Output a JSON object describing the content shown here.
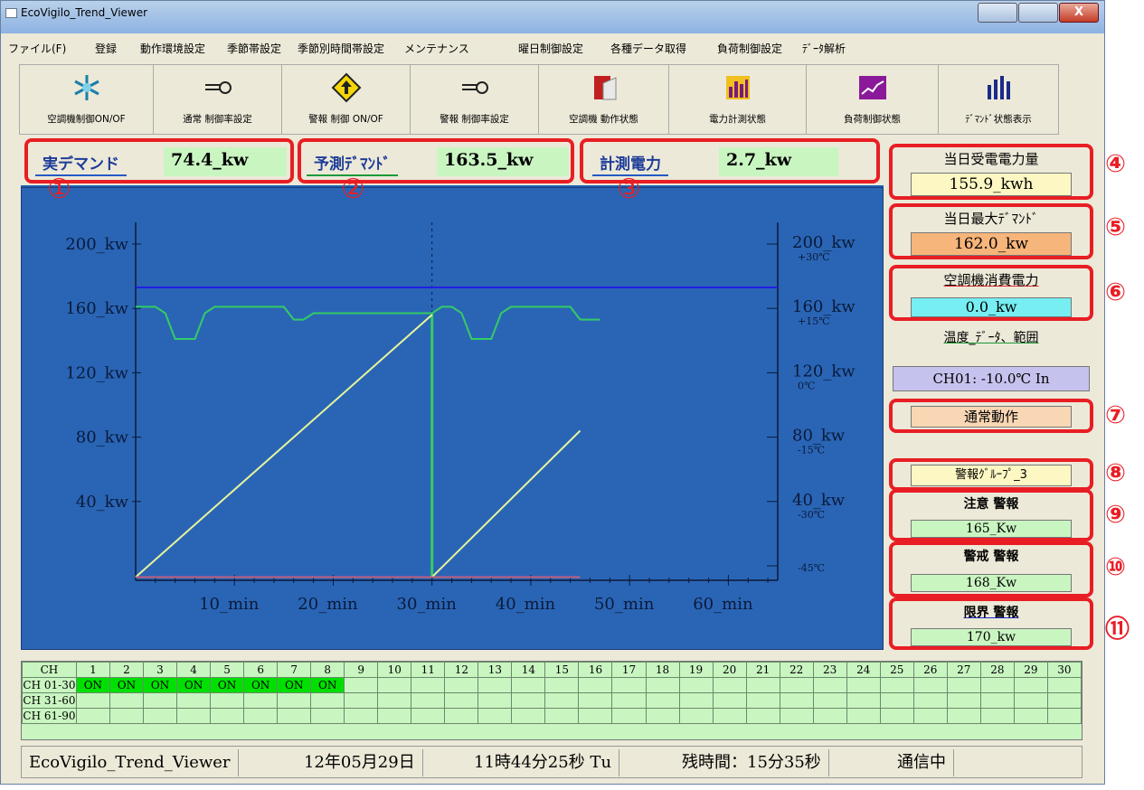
{
  "window": {
    "title": "EcoVigilo_Trend_Viewer",
    "close_label": "X"
  },
  "menu": [
    "ファイル(F)",
    "登録",
    "動作環境設定",
    "季節帯設定",
    "季節別時間帯設定",
    "メンテナンス",
    "曜日制御設定",
    "各種データ取得",
    "負荷制御設定",
    "ﾃﾞｰﾀ解析"
  ],
  "toolbar": [
    {
      "label": "空調機制御ON/OF",
      "icon": "snowflake-icon"
    },
    {
      "label": "通常 制御率設定",
      "icon": "key-icon"
    },
    {
      "label": "警報 制御 ON/OF",
      "icon": "warning-sign-icon"
    },
    {
      "label": "警報 制御率設定",
      "icon": "key-icon"
    },
    {
      "label": "空調機 動作状態",
      "icon": "book-icon"
    },
    {
      "label": "電力計測状態",
      "icon": "bar-chart-icon"
    },
    {
      "label": "負荷制御状態",
      "icon": "line-chart-icon"
    },
    {
      "label": "ﾃﾞﾏﾝﾄﾞ状態表示",
      "icon": "bars-icon"
    }
  ],
  "readouts": [
    {
      "label": "実デマンド",
      "value": "74.4_kw",
      "marker": "①"
    },
    {
      "label": "予測ﾃﾞﾏﾝﾄﾞ",
      "value": "163.5_kw",
      "marker": "②"
    },
    {
      "label": "計測電力",
      "value": "2.7_kw",
      "marker": "③"
    }
  ],
  "chart_data": {
    "type": "line",
    "title": "",
    "xlabel": "",
    "ylabel": "",
    "xlim": [
      0,
      65
    ],
    "ylim": [
      0,
      200
    ],
    "x_ticks": [
      "10_min",
      "20_min",
      "30_min",
      "40_min",
      "50_min",
      "60_min"
    ],
    "y_ticks_left": [
      "200_kw",
      "160_kw",
      "120_kw",
      "80_kw",
      "40_kw"
    ],
    "y_ticks_right": [
      {
        "kw": "200_kw",
        "temp": "+30℃"
      },
      {
        "kw": "160_kw",
        "temp": "+15℃"
      },
      {
        "kw": "120_kw",
        "temp": "0℃"
      },
      {
        "kw": "80_kw",
        "temp": "-15℃"
      },
      {
        "kw": "40_kw",
        "temp": "-30℃"
      },
      {
        "kw": "",
        "temp": "-45℃"
      }
    ],
    "divider_x": 30,
    "series": [
      {
        "color": "#2020e0",
        "kind": "hline",
        "x": [
          0,
          65
        ],
        "y": [
          182,
          182
        ]
      },
      {
        "color": "#33cc66",
        "kind": "line",
        "x": [
          0,
          2,
          3,
          4,
          6,
          7,
          8,
          15,
          16,
          17,
          18,
          19,
          20,
          30,
          30,
          31,
          32,
          33,
          34,
          36,
          37,
          38,
          44,
          45,
          46,
          47
        ],
        "y": [
          170,
          170,
          166,
          150,
          150,
          166,
          170,
          170,
          162,
          162,
          166,
          166,
          166,
          166,
          166,
          170,
          170,
          166,
          150,
          150,
          166,
          170,
          170,
          162,
          162,
          162
        ]
      },
      {
        "color": "#33cc66",
        "kind": "vline",
        "x": [
          30,
          30
        ],
        "y": [
          2,
          166
        ]
      },
      {
        "color": "#e8f59a",
        "kind": "line",
        "x": [
          0,
          30
        ],
        "y": [
          2,
          165
        ]
      },
      {
        "color": "#e8f59a",
        "kind": "line",
        "x": [
          30,
          45
        ],
        "y": [
          2,
          93
        ]
      },
      {
        "color": "#c06080",
        "kind": "hline",
        "x": [
          0,
          45
        ],
        "y": [
          2,
          2
        ]
      }
    ]
  },
  "side": {
    "daily_energy": {
      "label": "当日受電電力量",
      "value": "155.9_kwh",
      "marker": "④"
    },
    "daily_max": {
      "label": "当日最大ﾃﾞﾏﾝﾄﾞ",
      "value": "162.0_kw",
      "marker": "⑤"
    },
    "ac_power": {
      "label": "空調機消費電力",
      "value": "0.0_kw",
      "marker": "⑥"
    },
    "temp_range": {
      "label": "温度_ﾃﾞｰﾀ、範囲",
      "value": "CH01: -10.0℃ In"
    },
    "mode": {
      "value": "通常動作",
      "marker": "⑦"
    },
    "alarm_group": {
      "value": "警報ｸﾞﾙｰﾌﾟ_3",
      "marker": "⑧"
    },
    "caution_alarm": {
      "label": "注意 警報",
      "value": "165_Kw",
      "marker": "⑨"
    },
    "warning_alarm": {
      "label": "警戒 警報",
      "value": "168_Kw",
      "marker": "⑩"
    },
    "limit_alarm": {
      "label": "限界 警報",
      "value": "170_kw",
      "marker": "⑪"
    }
  },
  "channels": {
    "header": [
      "CH",
      "1",
      "2",
      "3",
      "4",
      "5",
      "6",
      "7",
      "8",
      "9",
      "10",
      "11",
      "12",
      "13",
      "14",
      "15",
      "16",
      "17",
      "18",
      "19",
      "20",
      "21",
      "22",
      "23",
      "24",
      "25",
      "26",
      "27",
      "28",
      "29",
      "30"
    ],
    "rows": [
      {
        "label": "CH 01-30",
        "cells": [
          "ON",
          "ON",
          "ON",
          "ON",
          "ON",
          "ON",
          "ON",
          "ON",
          "",
          "",
          "",
          "",
          "",
          "",
          "",
          "",
          "",
          "",
          "",
          "",
          "",
          "",
          "",
          "",
          "",
          "",
          "",
          "",
          "",
          ""
        ]
      },
      {
        "label": "CH 31-60",
        "cells": [
          "",
          "",
          "",
          "",
          "",
          "",
          "",
          "",
          "",
          "",
          "",
          "",
          "",
          "",
          "",
          "",
          "",
          "",
          "",
          "",
          "",
          "",
          "",
          "",
          "",
          "",
          "",
          "",
          "",
          ""
        ]
      },
      {
        "label": "CH 61-90",
        "cells": [
          "",
          "",
          "",
          "",
          "",
          "",
          "",
          "",
          "",
          "",
          "",
          "",
          "",
          "",
          "",
          "",
          "",
          "",
          "",
          "",
          "",
          "",
          "",
          "",
          "",
          "",
          "",
          "",
          "",
          ""
        ]
      }
    ]
  },
  "status": [
    "EcoVigilo_Trend_Viewer",
    "12年05月29日",
    "11時44分25秒 Tu",
    "残時間：15分35秒",
    "通信中"
  ],
  "colors": {
    "accent_red": "#e81e24",
    "chart_bg": "#2a65b5",
    "value_green": "#c9f5c1"
  }
}
